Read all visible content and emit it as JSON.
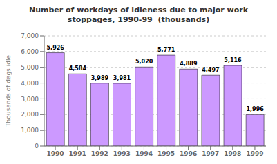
{
  "chart_data": {
    "type": "bar",
    "title": "Number of workdays of idleness due to major work\nstoppages, 1990-99  (thousands)",
    "categories": [
      "1990",
      "1991",
      "1992",
      "1993",
      "1994",
      "1995",
      "1996",
      "1997",
      "1998",
      "1999"
    ],
    "values": [
      5926,
      4584,
      3989,
      3981,
      5020,
      5771,
      4889,
      4497,
      5116,
      1996
    ],
    "value_labels": [
      "5,926",
      "4,584",
      "3,989",
      "3,981",
      "5,020",
      "5,771",
      "4,889",
      "4,497",
      "5,116",
      "1,996"
    ],
    "data_labels": true,
    "color": "#cc99ff",
    "ylabel": "Thousands of dags idle",
    "ylim": [
      0,
      7000
    ],
    "yticks": [
      0,
      {
        "value": 1000,
        "label": "1,000"
      },
      {
        "value": 2000,
        "label": "2,000"
      },
      {
        "value": 3000,
        "label": "3,000"
      },
      {
        "value": 4000,
        "label": "4,000"
      },
      {
        "value": 5000,
        "label": "5,000"
      },
      {
        "value": 6000,
        "label": "6,000"
      },
      {
        "value": 7000,
        "label": "7,000"
      }
    ],
    "grid": true
  }
}
